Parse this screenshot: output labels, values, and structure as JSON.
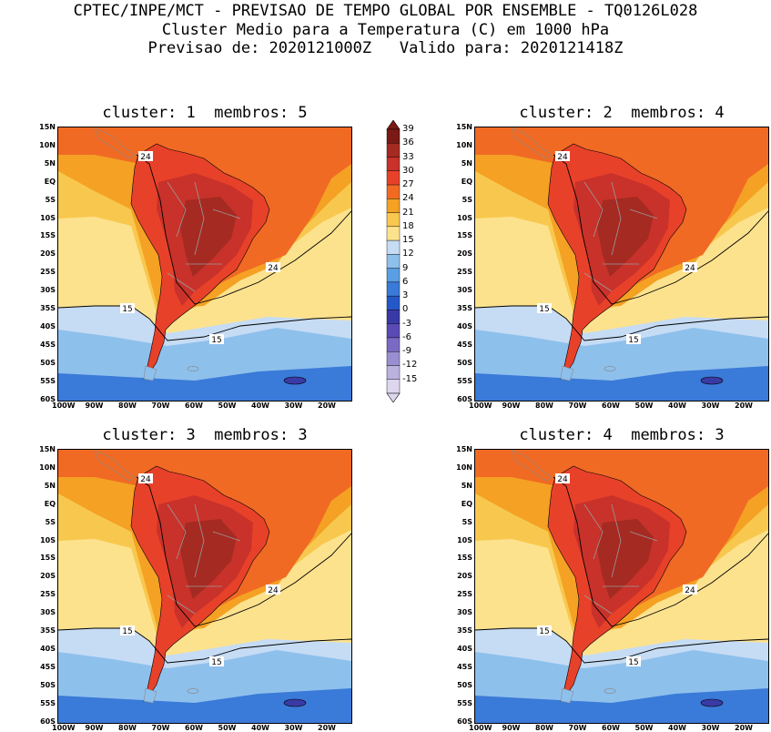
{
  "header": {
    "line1": "CPTEC/INPE/MCT - PREVISAO DE TEMPO GLOBAL POR ENSEMBLE - TQ0126L028",
    "line2": "Cluster Medio para a Temperatura (C) em 1000 hPa",
    "line3": "Previsao de: 2020121000Z   Valido para: 2020121418Z"
  },
  "panels": [
    {
      "title": "cluster: 1  membros: 5",
      "labels": [
        "24",
        "24",
        "15",
        "15"
      ]
    },
    {
      "title": "cluster: 2  membros: 4",
      "labels": [
        "24",
        "24",
        "15",
        "15"
      ]
    },
    {
      "title": "cluster: 3  membros: 3",
      "labels": [
        "24",
        "24",
        "15",
        "15"
      ]
    },
    {
      "title": "cluster: 4  membros: 3",
      "labels": [
        "24",
        "24",
        "15",
        "15"
      ]
    }
  ],
  "axes": {
    "lat_ticks": [
      "15N",
      "10N",
      "5N",
      "EQ",
      "5S",
      "10S",
      "15S",
      "20S",
      "25S",
      "30S",
      "35S",
      "40S",
      "45S",
      "50S",
      "55S",
      "60S"
    ],
    "lon_ticks": [
      "100W",
      "90W",
      "80W",
      "70W",
      "60W",
      "50W",
      "40W",
      "30W",
      "20W"
    ]
  },
  "colorbar": {
    "labels": [
      "39",
      "36",
      "33",
      "30",
      "27",
      "24",
      "21",
      "18",
      "15",
      "12",
      "9",
      "6",
      "3",
      "0",
      "-3",
      "-6",
      "-9",
      "-12",
      "-15"
    ],
    "colors": [
      "#7a1a14",
      "#a52a22",
      "#c8322a",
      "#e8412a",
      "#f06a24",
      "#f4a124",
      "#f8c84e",
      "#fde28e",
      "#c6dcf4",
      "#8ec0ec",
      "#5a9ee4",
      "#3a7ad8",
      "#2458c8",
      "#3a3aa6",
      "#5a4ab4",
      "#7a6ac4",
      "#9a8ed2",
      "#bcb2e0",
      "#ddd6ee"
    ],
    "icons": {
      "top": "colorbar-up-arrow-icon",
      "bottom": "colorbar-down-arrow-icon"
    }
  }
}
